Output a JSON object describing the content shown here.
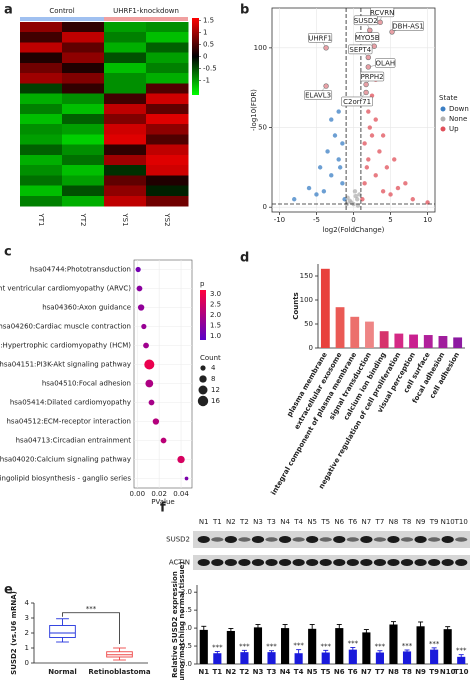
{
  "chart_data": [
    {
      "type": "heatmap",
      "label": "a",
      "groups": [
        "Control",
        "UHRF1-knockdown"
      ],
      "columns": [
        "YT1",
        "YT2",
        "YS1",
        "YS2"
      ],
      "values": [
        [
          0.9,
          0.3,
          -1,
          -0.9
        ],
        [
          0.4,
          1.2,
          -0.8,
          -1.2
        ],
        [
          1.2,
          0.6,
          -1.1,
          -0.6
        ],
        [
          0.2,
          0.9,
          -0.5,
          -1
        ],
        [
          0.7,
          0.2,
          -1.2,
          -0.8
        ],
        [
          1.0,
          0.8,
          -0.9,
          -1.1
        ],
        [
          -0.4,
          0.3,
          -0.9,
          0.5
        ],
        [
          -1.1,
          -0.9,
          0.4,
          1.3
        ],
        [
          -0.8,
          -1.2,
          1.2,
          0.6
        ],
        [
          -1.2,
          -0.6,
          0.8,
          1.4
        ],
        [
          -0.9,
          -1.0,
          1.3,
          0.9
        ],
        [
          -1.0,
          -1.3,
          1.4,
          0.5
        ],
        [
          -0.6,
          -0.9,
          0.3,
          1.2
        ],
        [
          -1.1,
          -0.7,
          1.0,
          1.4
        ],
        [
          -0.9,
          -1.2,
          -0.3,
          1.3
        ],
        [
          -0.7,
          -1.0,
          0.6,
          0.2
        ],
        [
          -1.2,
          -0.5,
          0.9,
          -0.2
        ],
        [
          -0.8,
          -1.1,
          1.2,
          0.7
        ]
      ],
      "clim": [
        -1.6,
        1.6
      ],
      "colorbar_ticks": [
        1.5,
        1,
        0.5,
        0,
        -0.5,
        -1
      ]
    },
    {
      "type": "scatter",
      "label": "b",
      "xlabel": "log2(FoldChange)",
      "ylabel": "-log10(FDR)",
      "xlim": [
        -11,
        11
      ],
      "ylim": [
        -3,
        125
      ],
      "xticks": [
        -10,
        -5,
        0,
        5,
        10
      ],
      "yticks": [
        0,
        50,
        100
      ],
      "grid": true,
      "thresholds_x": [
        -1,
        1
      ],
      "threshold_y": 2,
      "legend_title": "State",
      "series": [
        {
          "name": "Down",
          "color": "#3b7fc4",
          "x": [
            -2,
            -3,
            -1.5,
            -4,
            -2.5,
            -5,
            -1.2,
            -3.5,
            -6,
            -2,
            -1.8,
            -4.5,
            -8,
            -3,
            -1.5
          ],
          "y": [
            30,
            20,
            15,
            10,
            45,
            8,
            5,
            35,
            12,
            60,
            25,
            25,
            5,
            55,
            40
          ]
        },
        {
          "name": "None",
          "color": "#b0b0b0",
          "x": [
            0,
            0.5,
            -0.5,
            0.8,
            -0.8,
            0.2,
            -0.3,
            0.6,
            -0.9,
            0.3
          ],
          "y": [
            2,
            5,
            4,
            8,
            6,
            10,
            3,
            1,
            2,
            7
          ]
        },
        {
          "name": "Up",
          "color": "#e0505a",
          "x": [
            2,
            3,
            1.5,
            4,
            2.5,
            5,
            1.2,
            3.5,
            6,
            2,
            1.8,
            4.5,
            8,
            3,
            1.5,
            2.5,
            7,
            10,
            3,
            2.2,
            5.5,
            4
          ],
          "y": [
            30,
            20,
            15,
            10,
            45,
            8,
            5,
            35,
            12,
            60,
            25,
            25,
            5,
            55,
            40,
            70,
            15,
            3,
            80,
            50,
            30,
            45
          ]
        }
      ],
      "annotations": [
        {
          "text": "RCVRN",
          "x": 3.6,
          "y": 116
        },
        {
          "text": "SUSD2",
          "x": 2.2,
          "y": 111
        },
        {
          "text": "DBH-AS1",
          "x": 5.2,
          "y": 110
        },
        {
          "text": "UHRF1",
          "x": -3.7,
          "y": 100
        },
        {
          "text": "MYO5B",
          "x": 2.8,
          "y": 101
        },
        {
          "text": "SEPT4",
          "x": 2.0,
          "y": 94
        },
        {
          "text": "OLAH",
          "x": 2.0,
          "y": 88
        },
        {
          "text": "PRPH2",
          "x": 1.7,
          "y": 77
        },
        {
          "text": "ELAVL3",
          "x": -3.7,
          "y": 76
        },
        {
          "text": "C2orf71",
          "x": 1.7,
          "y": 72
        }
      ]
    },
    {
      "type": "dot",
      "label": "c",
      "xlabel": "PValue",
      "categories": [
        "hsa04744:Phototransduction",
        "hsa05412:Arrhythmogenic right ventricular cardiomyopathy (ARVC)",
        "hsa04360:Axon guidance",
        "hsa04260:Cardiac muscle contraction",
        "hsa05410:Hypertrophic cardiomyopathy (HCM)",
        "hsa04151:PI3K-Akt signaling pathway",
        "hsa04510:Focal adhesion",
        "hsa05414:Dilated cardiomyopathy",
        "hsa04512:ECM-receptor interaction",
        "hsa04713:Circadian entrainment",
        "hsa04020:Calcium signaling pathway",
        "hsa00604:Glycosphingolipid biosynthesis - ganglio series"
      ],
      "pvalue": [
        0.0008,
        0.002,
        0.0035,
        0.006,
        0.008,
        0.011,
        0.011,
        0.013,
        0.017,
        0.024,
        0.04,
        0.045
      ],
      "count": [
        4,
        5,
        6,
        4,
        5,
        15,
        9,
        5,
        6,
        5,
        8,
        2
      ],
      "p": [
        1.2,
        1.5,
        1.6,
        1.7,
        1.8,
        2.9,
        2.0,
        1.9,
        2.1,
        2.2,
        2.6,
        1.3
      ],
      "xlim": [
        -0.003,
        0.05
      ],
      "xticks": [
        {
          "value": 0,
          "label": "0.00"
        },
        0.02,
        0.04
      ],
      "color_title": "p",
      "clim": [
        0.8,
        3.2
      ],
      "color_ticks": [
        {
          "value": 1,
          "label": "1.0"
        },
        1.5,
        {
          "value": 2,
          "label": "2.0"
        },
        2.5,
        {
          "value": 3,
          "label": "3.0"
        }
      ],
      "size_title": "Count",
      "size_ticks": [
        4,
        8,
        12,
        16
      ]
    },
    {
      "type": "bar",
      "label": "d",
      "ylabel": "Counts",
      "categories": [
        "plasma membrane",
        "extracellular exosome",
        "integral component of plasma membrane",
        "signal transduction",
        "calcium ion binding",
        "negative regulation of cell proliferation",
        "visual perception",
        "cell surface",
        "focal adhesion",
        "cell adhesion"
      ],
      "values": [
        165,
        85,
        65,
        55,
        35,
        30,
        28,
        27,
        25,
        22
      ],
      "colors": [
        "#e8413c",
        "#ea5a55",
        "#ec6f6c",
        "#ee8585",
        "#d6336c",
        "#d42a85",
        "#c9208f",
        "#b0209a",
        "#a01e9c",
        "#8c1aa0"
      ],
      "ylim": [
        0,
        175
      ],
      "yticks": [
        0,
        50,
        100,
        150
      ]
    },
    {
      "type": "box",
      "label": "e",
      "ylabel": "SUSD2 (vs.U6 mRNA)",
      "categories": [
        "Normal",
        "Retinoblastoma"
      ],
      "boxes": [
        {
          "min": 1.4,
          "q1": 1.7,
          "median": 2.0,
          "q3": 2.5,
          "max": 2.95
        },
        {
          "min": 0.2,
          "q1": 0.4,
          "median": 0.55,
          "q3": 0.75,
          "max": 1.0
        }
      ],
      "colors": [
        "#2233dd",
        "#ee4444"
      ],
      "ylim": [
        0,
        4
      ],
      "yticks": [
        0,
        1,
        2,
        3,
        4
      ],
      "significance": "***"
    },
    {
      "type": "bar",
      "label": "f",
      "blot_rows": [
        "SUSD2",
        "ACTIN"
      ],
      "ylabel": [
        "Relative SUSD2 expression",
        "(tumor/matching normal tissue)"
      ],
      "categories": [
        "N1",
        "T1",
        "N2",
        "T2",
        "N3",
        "T3",
        "N4",
        "T4",
        "N5",
        "T5",
        "N6",
        "T6",
        "N7",
        "T7",
        "N8",
        "T8",
        "N9",
        "T9",
        "N10",
        "T10"
      ],
      "values": [
        0.95,
        0.3,
        0.92,
        0.33,
        1.02,
        0.33,
        1.0,
        0.3,
        0.98,
        0.32,
        1.0,
        0.4,
        0.88,
        0.32,
        1.1,
        0.35,
        1.05,
        0.4,
        0.97,
        0.2
      ],
      "errors": [
        0.1,
        0.05,
        0.07,
        0.05,
        0.08,
        0.04,
        0.1,
        0.1,
        0.12,
        0.06,
        0.1,
        0.06,
        0.08,
        0.05,
        0.08,
        0.04,
        0.12,
        0.05,
        0.07,
        0.06
      ],
      "colors": [
        "#000000",
        "#1a1adb",
        "#000000",
        "#1a1adb",
        "#000000",
        "#1a1adb",
        "#000000",
        "#1a1adb",
        "#000000",
        "#1a1adb",
        "#000000",
        "#1a1adb",
        "#000000",
        "#1a1adb",
        "#000000",
        "#1a1adb",
        "#000000",
        "#1a1adb",
        "#000000",
        "#1a1adb"
      ],
      "significance": [
        null,
        "***",
        null,
        "***",
        null,
        "***",
        null,
        "***",
        null,
        "***",
        null,
        "***",
        null,
        "***",
        null,
        "***",
        null,
        "***",
        null,
        "***"
      ],
      "ylim": [
        0,
        2.2
      ],
      "yticks": [
        {
          "value": 0,
          "label": "0.0"
        },
        0.5,
        {
          "value": 1,
          "label": "1.0"
        },
        1.5,
        {
          "value": 2,
          "label": "2.0"
        }
      ]
    }
  ]
}
